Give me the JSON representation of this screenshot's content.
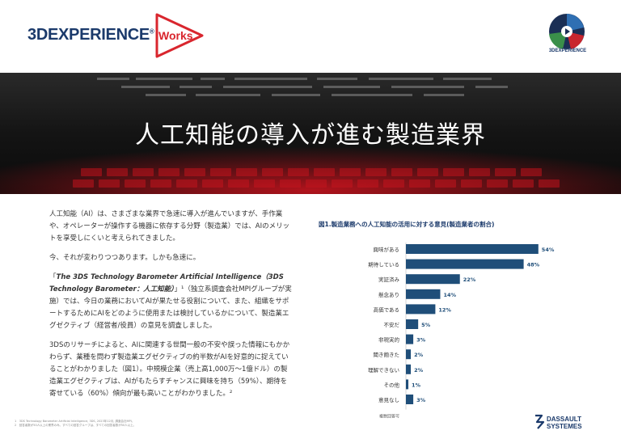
{
  "header": {
    "brand": "3DEXPERIENCE",
    "brand_sup": "®",
    "works": "Works",
    "compass_label": "3DEXPERIENCE"
  },
  "hero": {
    "title": "人工知能の導入が進む製造業界"
  },
  "body": {
    "p1": "人工知能（AI）は、さまざまな業界で急速に導入が進んでいますが、手作業や、オペレーターが操作する機器に依存する分野（製造業）では、AIのメリットを享受しにくいと考えられてきました。",
    "p2": "今、それが変わりつつあります。しかも急速に。",
    "p3_a": "「",
    "p3_b": "The 3DS Technology Barometer Artificial Intelligence（3DS Technology Barometer：人工知能）",
    "p3_c": "」¹（独立系調査会社MPIグループが実施）では、今日の業務においてAIが果たせる役割について、また、組織をサポートするためにAIをどのように使用または検討しているかについて、製造業エグゼクティブ（経営者/役員）の意見を調査しました。",
    "p4": "3DSのリサーチによると、AIに関連する世間一般の不安や誤った情報にもかかわらず、業種を問わず製造業エグゼクティブの約半数がAIを好意的に捉えていることがわかりました（図1）。中規模企業（売上高1,000万〜1億ドル）の製造業エグゼクティブは、AIがもたらすチャンスに興味を持ち（59%）、期待を寄せている（60%）傾向が最も高いことがわかりました。²"
  },
  "chart_data": {
    "type": "bar",
    "orientation": "horizontal",
    "title": "図1.製造業務への人工知能の活用に対する意見(製造業者の割合)",
    "categories": [
      "興味がある",
      "期待している",
      "実証済み",
      "懸念あり",
      "高価である",
      "不安だ",
      "非現実的",
      "聞き飽きた",
      "理解できない",
      "その他",
      "意見なし"
    ],
    "values": [
      54,
      48,
      22,
      14,
      12,
      5,
      3,
      2,
      2,
      1,
      3
    ],
    "value_labels": [
      "54%",
      "48%",
      "22%",
      "14%",
      "12%",
      "5%",
      "3%",
      "2%",
      "2%",
      "1%",
      "3%"
    ],
    "xlim": [
      0,
      60
    ],
    "note": "複数回答可",
    "bar_color": "#1f4e79"
  },
  "footnotes": {
    "f1": "1　3DS Technology Barometer Artificial Intelligence, 3DS, 2023年12月, 調査会社MPI。",
    "f2": "2　回答者数が50人以上の業界のみ。すべての回答グループは、すべての回答者数が50人以上。"
  },
  "footer": {
    "ds_line1": "DASSAULT",
    "ds_line2": "SYSTEMES"
  }
}
